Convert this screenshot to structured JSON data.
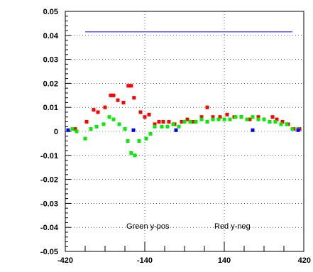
{
  "chart_data": {
    "type": "scatter",
    "title": "",
    "xlabel": "",
    "ylabel": "",
    "xlim": [
      -420,
      420
    ],
    "ylim": [
      -0.05,
      0.05
    ],
    "grid": true,
    "x_ticks": [
      -420,
      -140,
      140,
      420
    ],
    "x_tick_labels": [
      "-420",
      "-140",
      "140",
      "420"
    ],
    "y_ticks": [
      -0.05,
      -0.04,
      -0.03,
      -0.02,
      -0.01,
      0,
      0.01,
      0.02,
      0.03,
      0.04,
      0.05
    ],
    "y_tick_labels": [
      "-0.05",
      "-0.04",
      "-0.03",
      "-0.02",
      "-0.01",
      "0",
      "0.01",
      "0.02",
      "0.03",
      "0.04",
      "0.05"
    ],
    "annotations": [
      {
        "text": "Green y-pos",
        "x": -205,
        "y": -0.0405
      },
      {
        "text": "Red y-neg",
        "x": 105,
        "y": -0.0405
      }
    ],
    "series": [
      {
        "color": "#ff0000",
        "points": [
          [
            -385,
            0.001
          ],
          [
            -345,
            0.004
          ],
          [
            -320,
            0.009
          ],
          [
            -305,
            0.008
          ],
          [
            -280,
            0.01
          ],
          [
            -260,
            0.015
          ],
          [
            -250,
            0.015
          ],
          [
            -235,
            0.013
          ],
          [
            -215,
            0.012
          ],
          [
            -198,
            0.019
          ],
          [
            -188,
            0.019
          ],
          [
            -178,
            0.014
          ],
          [
            -155,
            0.008
          ],
          [
            -140,
            0.006
          ],
          [
            -125,
            0.007
          ],
          [
            -105,
            0.003
          ],
          [
            -90,
            0.004
          ],
          [
            -75,
            0.004
          ],
          [
            -55,
            0.004
          ],
          [
            -35,
            0.003
          ],
          [
            -10,
            0.004
          ],
          [
            10,
            0.005
          ],
          [
            30,
            0.004
          ],
          [
            60,
            0.006
          ],
          [
            80,
            0.01
          ],
          [
            100,
            0.006
          ],
          [
            125,
            0.006
          ],
          [
            150,
            0.007
          ],
          [
            175,
            0.006
          ],
          [
            200,
            0.006
          ],
          [
            230,
            0.005
          ],
          [
            260,
            0.006
          ],
          [
            280,
            0.005
          ],
          [
            310,
            0.006
          ],
          [
            325,
            0.005
          ],
          [
            345,
            0.004
          ],
          [
            365,
            0.003
          ],
          [
            385,
            0.001
          ],
          [
            405,
            0.001
          ]
        ]
      },
      {
        "color": "#00ee00",
        "points": [
          [
            -395,
            0.001
          ],
          [
            -380,
            0.0
          ],
          [
            -350,
            -0.003
          ],
          [
            -330,
            0.001
          ],
          [
            -310,
            0.002
          ],
          [
            -285,
            0.003
          ],
          [
            -265,
            0.006
          ],
          [
            -250,
            0.005
          ],
          [
            -230,
            0.003
          ],
          [
            -210,
            0.001
          ],
          [
            -200,
            -0.004
          ],
          [
            -188,
            -0.009
          ],
          [
            -175,
            -0.01
          ],
          [
            -160,
            -0.004
          ],
          [
            -135,
            -0.003
          ],
          [
            -120,
            -0.001
          ],
          [
            -105,
            0.002
          ],
          [
            -80,
            0.002
          ],
          [
            -60,
            0.002
          ],
          [
            -40,
            0.003
          ],
          [
            -20,
            0.002
          ],
          [
            0,
            0.004
          ],
          [
            20,
            0.004
          ],
          [
            40,
            0.004
          ],
          [
            60,
            0.005
          ],
          [
            80,
            0.004
          ],
          [
            100,
            0.005
          ],
          [
            120,
            0.005
          ],
          [
            140,
            0.005
          ],
          [
            160,
            0.005
          ],
          [
            180,
            0.006
          ],
          [
            200,
            0.006
          ],
          [
            220,
            0.005
          ],
          [
            240,
            0.006
          ],
          [
            260,
            0.005
          ],
          [
            280,
            0.005
          ],
          [
            300,
            0.004
          ],
          [
            320,
            0.004
          ],
          [
            340,
            0.003
          ],
          [
            360,
            0.003
          ],
          [
            380,
            0.001
          ],
          [
            400,
            0.001
          ]
        ]
      },
      {
        "color": "#0000ff",
        "points": [
          [
            -410,
            0.0005
          ],
          [
            -180,
            0.0005
          ],
          [
            -30,
            0.0005
          ],
          [
            240,
            0.0005
          ],
          [
            400,
            0.0005
          ]
        ]
      },
      {
        "color": "#5c5cff",
        "line": true,
        "points": [
          [
            -350,
            0.0415
          ],
          [
            380,
            0.0415
          ]
        ]
      }
    ]
  }
}
